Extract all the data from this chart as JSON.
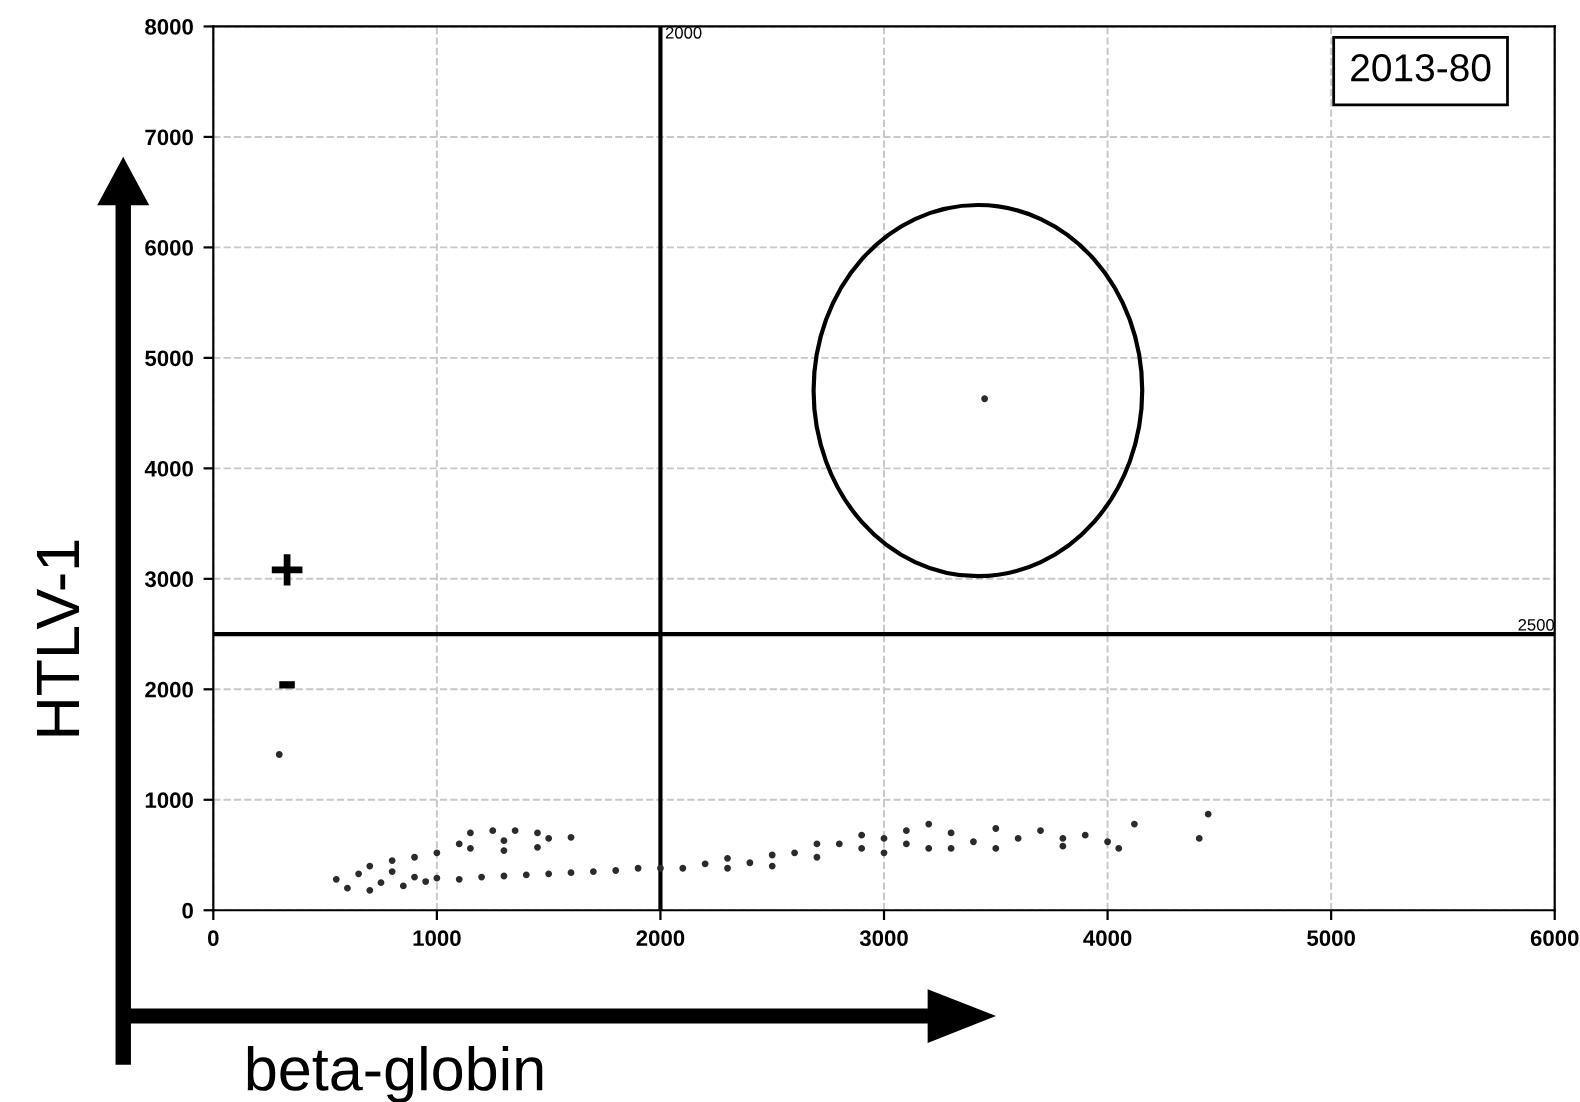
{
  "chart_data": {
    "type": "scatter",
    "xlabel": "beta-globin",
    "ylabel": "HTLV-1",
    "x": [
      550,
      600,
      650,
      700,
      750,
      800,
      850,
      900,
      950,
      1000,
      1100,
      1200,
      1300,
      1400,
      1500,
      1600,
      1700,
      1800,
      1900,
      2000,
      700,
      800,
      900,
      1000,
      1100,
      1150,
      1250,
      1350,
      1450,
      1500,
      1450,
      1300,
      1150,
      1300,
      1600,
      2100,
      2200,
      2300,
      2400,
      2500,
      2600,
      2700,
      2800,
      2900,
      3000,
      3000,
      3100,
      3200,
      3200,
      3300,
      3400,
      3500,
      3500,
      3600,
      3700,
      3800,
      3900,
      4000,
      4050,
      3800,
      3300,
      3100,
      2900,
      2700,
      2500,
      2300,
      4120,
      4450,
      4410,
      295,
      3450
    ],
    "values": [
      280,
      200,
      330,
      180,
      250,
      350,
      220,
      300,
      260,
      290,
      280,
      300,
      310,
      320,
      330,
      340,
      350,
      360,
      380,
      380,
      400,
      450,
      480,
      520,
      600,
      700,
      720,
      720,
      700,
      650,
      570,
      540,
      560,
      630,
      660,
      380,
      420,
      470,
      430,
      500,
      520,
      480,
      600,
      560,
      650,
      520,
      720,
      780,
      560,
      700,
      620,
      740,
      560,
      650,
      720,
      580,
      680,
      620,
      560,
      650,
      560,
      600,
      680,
      600,
      400,
      380,
      780,
      870,
      650,
      1410,
      4630
    ],
    "color": "#2b2b2b",
    "marker": "circle",
    "xlim": [
      0,
      6000
    ],
    "ylim": [
      0,
      8000
    ],
    "xticks": [
      0,
      1000,
      2000,
      3000,
      4000,
      5000,
      6000
    ],
    "yticks": [
      0,
      1000,
      2000,
      3000,
      4000,
      5000,
      6000,
      7000,
      8000
    ],
    "grid": true,
    "ref_lines": [
      {
        "axis": "x",
        "value": 2000,
        "label": "2000",
        "color": "#000000"
      },
      {
        "axis": "y",
        "value": 2500,
        "label": "2500",
        "color": "#000000"
      }
    ],
    "annotations": [
      "2013-80",
      "+",
      "-"
    ]
  }
}
